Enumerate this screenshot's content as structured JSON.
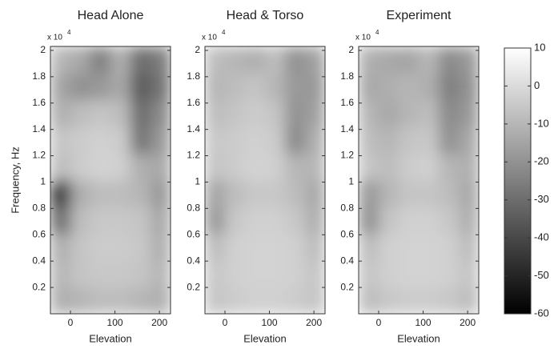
{
  "chart_data": [
    {
      "type": "heatmap",
      "title": "Head Alone",
      "xlabel": "Elevation",
      "ylabel": "Frequency, Hz",
      "y_multiplier": {
        "base": "x 10",
        "power": "4"
      },
      "xlim": [
        -45,
        225
      ],
      "xticks": [
        0,
        100,
        200
      ],
      "ylim": [
        0,
        2.03
      ],
      "yticks": [
        0.2,
        0.4,
        0.6,
        0.8,
        1,
        1.2,
        1.4,
        1.6,
        1.8,
        2
      ],
      "z": [
        [
          -12,
          -10,
          -8,
          -8,
          -10,
          -12
        ],
        [
          -10,
          -6,
          -5,
          -5,
          -6,
          -10
        ],
        [
          -12,
          -6,
          -4,
          -4,
          -5,
          -12
        ],
        [
          -30,
          -8,
          -5,
          -5,
          -6,
          -14
        ],
        [
          -45,
          -12,
          -8,
          -8,
          -10,
          -18
        ],
        [
          -8,
          -4,
          -2,
          -3,
          -12,
          -14
        ],
        [
          -6,
          -4,
          -3,
          -4,
          -28,
          -18
        ],
        [
          -12,
          -8,
          -6,
          -8,
          -30,
          -22
        ],
        [
          -15,
          -20,
          -18,
          -14,
          -35,
          -28
        ],
        [
          -10,
          -14,
          -25,
          -12,
          -30,
          -26
        ]
      ]
    },
    {
      "type": "heatmap",
      "title": "Head & Torso",
      "xlabel": "Elevation",
      "y_multiplier": {
        "base": "x 10",
        "power": "4"
      },
      "xlim": [
        -45,
        225
      ],
      "xticks": [
        0,
        100,
        200
      ],
      "ylim": [
        0,
        2.03
      ],
      "yticks": [
        0.2,
        0.4,
        0.6,
        0.8,
        1,
        1.2,
        1.4,
        1.6,
        1.8,
        2
      ],
      "z": [
        [
          -6,
          -4,
          -3,
          -3,
          -4,
          -6
        ],
        [
          -5,
          -3,
          -2,
          -2,
          -3,
          -6
        ],
        [
          -8,
          -3,
          -2,
          -2,
          -3,
          -8
        ],
        [
          -18,
          -5,
          -3,
          -3,
          -5,
          -12
        ],
        [
          -15,
          -8,
          -5,
          -5,
          -8,
          -14
        ],
        [
          -6,
          -4,
          -2,
          -3,
          -10,
          -10
        ],
        [
          -5,
          -4,
          -3,
          -4,
          -22,
          -12
        ],
        [
          -8,
          -6,
          -4,
          -6,
          -20,
          -16
        ],
        [
          -10,
          -8,
          -6,
          -10,
          -18,
          -18
        ],
        [
          -8,
          -10,
          -12,
          -8,
          -20,
          -16
        ]
      ]
    },
    {
      "type": "heatmap",
      "title": "Experiment",
      "xlabel": "Elevation",
      "y_multiplier": {
        "base": "x 10",
        "power": "4"
      },
      "xlim": [
        -45,
        225
      ],
      "xticks": [
        0,
        100,
        200
      ],
      "ylim": [
        0,
        2.03
      ],
      "yticks": [
        0.2,
        0.4,
        0.6,
        0.8,
        1,
        1.2,
        1.4,
        1.6,
        1.8,
        2
      ],
      "z": [
        [
          -8,
          -5,
          -4,
          -4,
          -5,
          -8
        ],
        [
          -6,
          -3,
          -2,
          -2,
          -3,
          -6
        ],
        [
          -8,
          -3,
          -2,
          -2,
          -3,
          -8
        ],
        [
          -20,
          -6,
          -3,
          -3,
          -5,
          -12
        ],
        [
          -18,
          -10,
          -6,
          -6,
          -8,
          -14
        ],
        [
          -6,
          -8,
          -4,
          -3,
          -10,
          -12
        ],
        [
          -8,
          -10,
          -6,
          -5,
          -20,
          -14
        ],
        [
          -10,
          -14,
          -10,
          -8,
          -22,
          -18
        ],
        [
          -14,
          -12,
          -10,
          -12,
          -25,
          -20
        ],
        [
          -12,
          -14,
          -15,
          -10,
          -22,
          -18
        ]
      ]
    },
    {
      "type": "colorbar",
      "zlim": [
        -60,
        10
      ],
      "zticks": [
        10,
        0,
        -10,
        -20,
        -30,
        -40,
        -50,
        -60
      ]
    }
  ]
}
